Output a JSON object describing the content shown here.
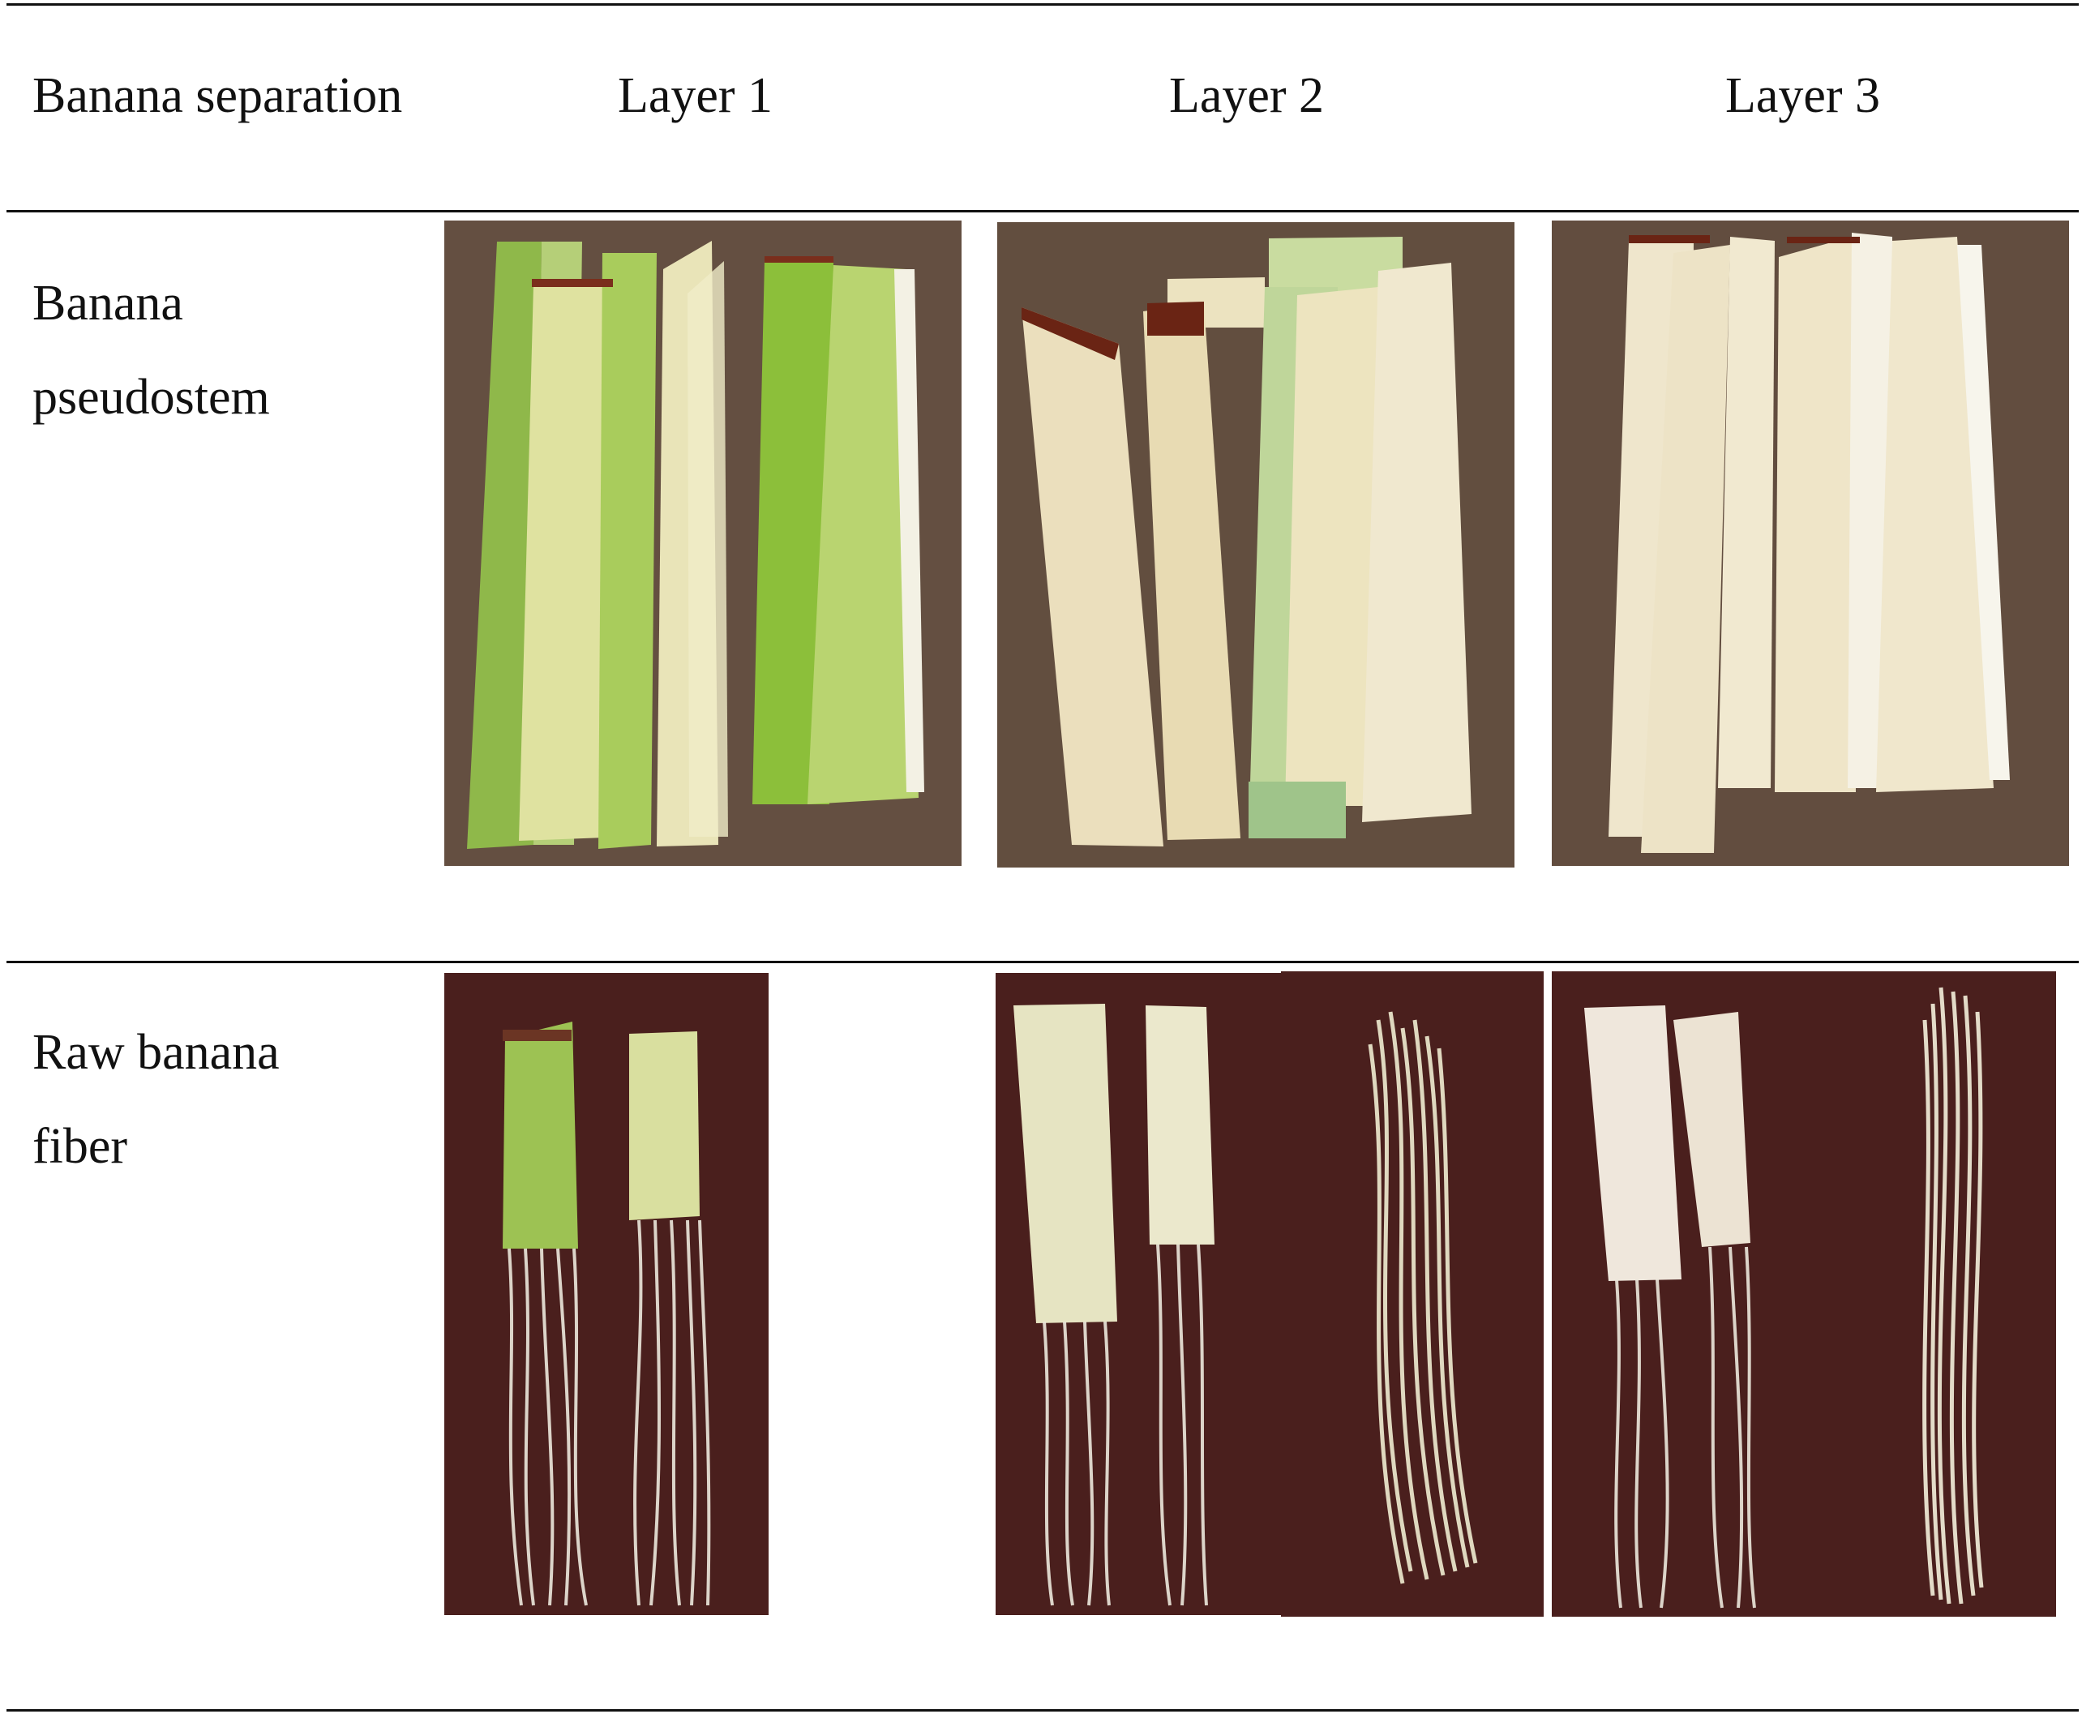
{
  "table": {
    "headers": [
      "Banana separation",
      "Layer 1",
      "Layer 2",
      "Layer 3"
    ],
    "rows": [
      {
        "label_lines": [
          "Banana",
          "pseudostem"
        ]
      },
      {
        "label_lines": [
          "Raw banana",
          "fiber"
        ]
      }
    ]
  },
  "colors": {
    "soil": "#6b5546",
    "board": "#4a1f1d",
    "green_sheath": "#9dc253",
    "pale_sheath": "#e8dfb0",
    "cream_sheath": "#efe6cb",
    "fiber": "#ece8dc",
    "rule": "#111111"
  }
}
